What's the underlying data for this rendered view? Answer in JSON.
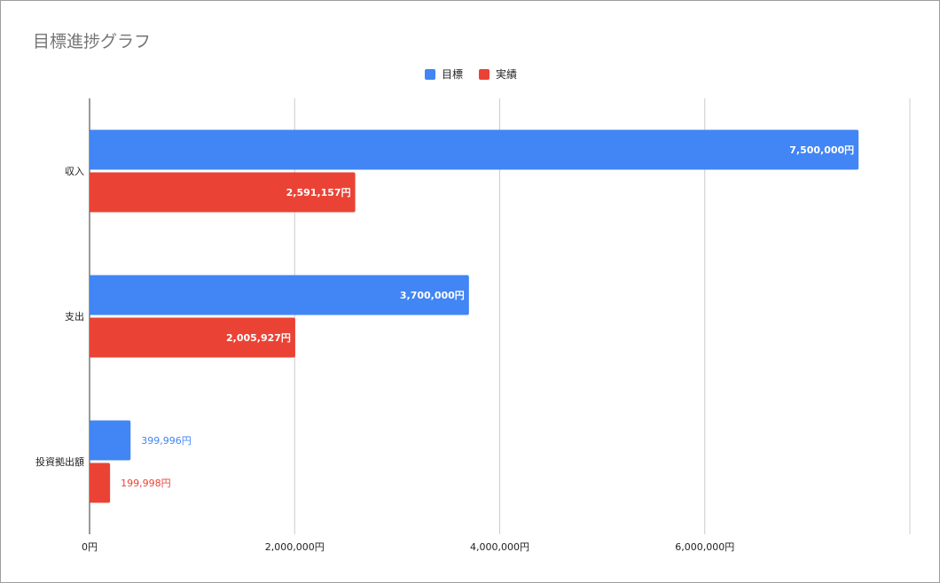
{
  "chart_data": {
    "type": "bar",
    "orientation": "horizontal",
    "title": "目標進捗グラフ",
    "categories": [
      "収入",
      "支出",
      "投資拠出額"
    ],
    "series": [
      {
        "name": "目標",
        "color": "#4285f4",
        "values": [
          7500000,
          3700000,
          399996
        ],
        "labels": [
          "7,500,000円",
          "3,700,000円",
          "399,996円"
        ]
      },
      {
        "name": "実績",
        "color": "#ea4335",
        "values": [
          2591157,
          2005927,
          199998
        ],
        "labels": [
          "2,591,157円",
          "2,005,927円",
          "199,998円"
        ]
      }
    ],
    "xlim": [
      0,
      8000000
    ],
    "xticks": [
      {
        "value": 0,
        "label": "0円"
      },
      {
        "value": 2000000,
        "label": "2,000,000円"
      },
      {
        "value": 4000000,
        "label": "4,000,000円"
      },
      {
        "value": 6000000,
        "label": "6,000,000円"
      }
    ],
    "grid": true,
    "legend_position": "top"
  }
}
